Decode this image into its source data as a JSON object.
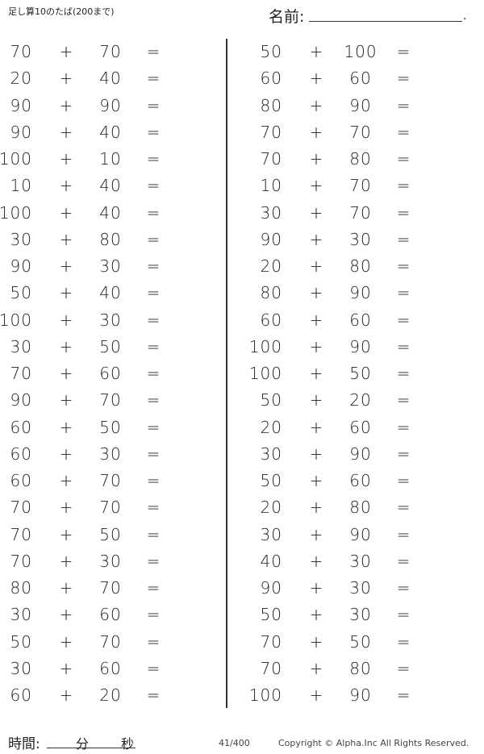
{
  "header": {
    "title": "足し算10のたば(200まで)",
    "name_label": "名前:",
    "name_end": "."
  },
  "symbols": {
    "plus": "+",
    "equals": "="
  },
  "left": [
    [
      "70",
      "70"
    ],
    [
      "20",
      "40"
    ],
    [
      "90",
      "90"
    ],
    [
      "90",
      "40"
    ],
    [
      "100",
      "10"
    ],
    [
      "10",
      "40"
    ],
    [
      "100",
      "40"
    ],
    [
      "30",
      "80"
    ],
    [
      "90",
      "30"
    ],
    [
      "50",
      "40"
    ],
    [
      "100",
      "30"
    ],
    [
      "30",
      "50"
    ],
    [
      "70",
      "60"
    ],
    [
      "90",
      "70"
    ],
    [
      "60",
      "50"
    ],
    [
      "60",
      "30"
    ],
    [
      "60",
      "70"
    ],
    [
      "70",
      "70"
    ],
    [
      "70",
      "50"
    ],
    [
      "70",
      "30"
    ],
    [
      "80",
      "70"
    ],
    [
      "30",
      "60"
    ],
    [
      "50",
      "70"
    ],
    [
      "30",
      "60"
    ],
    [
      "60",
      "20"
    ]
  ],
  "right": [
    [
      "50",
      "100"
    ],
    [
      "60",
      "60"
    ],
    [
      "80",
      "90"
    ],
    [
      "70",
      "70"
    ],
    [
      "70",
      "80"
    ],
    [
      "10",
      "70"
    ],
    [
      "30",
      "70"
    ],
    [
      "90",
      "30"
    ],
    [
      "20",
      "80"
    ],
    [
      "80",
      "90"
    ],
    [
      "60",
      "60"
    ],
    [
      "100",
      "90"
    ],
    [
      "100",
      "50"
    ],
    [
      "50",
      "20"
    ],
    [
      "20",
      "60"
    ],
    [
      "30",
      "90"
    ],
    [
      "50",
      "60"
    ],
    [
      "20",
      "80"
    ],
    [
      "30",
      "90"
    ],
    [
      "40",
      "30"
    ],
    [
      "90",
      "30"
    ],
    [
      "50",
      "30"
    ],
    [
      "70",
      "50"
    ],
    [
      "70",
      "80"
    ],
    [
      "100",
      "90"
    ]
  ],
  "footer": {
    "time_label": "時間:",
    "minutes": "分",
    "seconds": "秒",
    "page": "41/400",
    "copyright": "Copyright ©  Alpha.Inc All Rights Reserved."
  }
}
